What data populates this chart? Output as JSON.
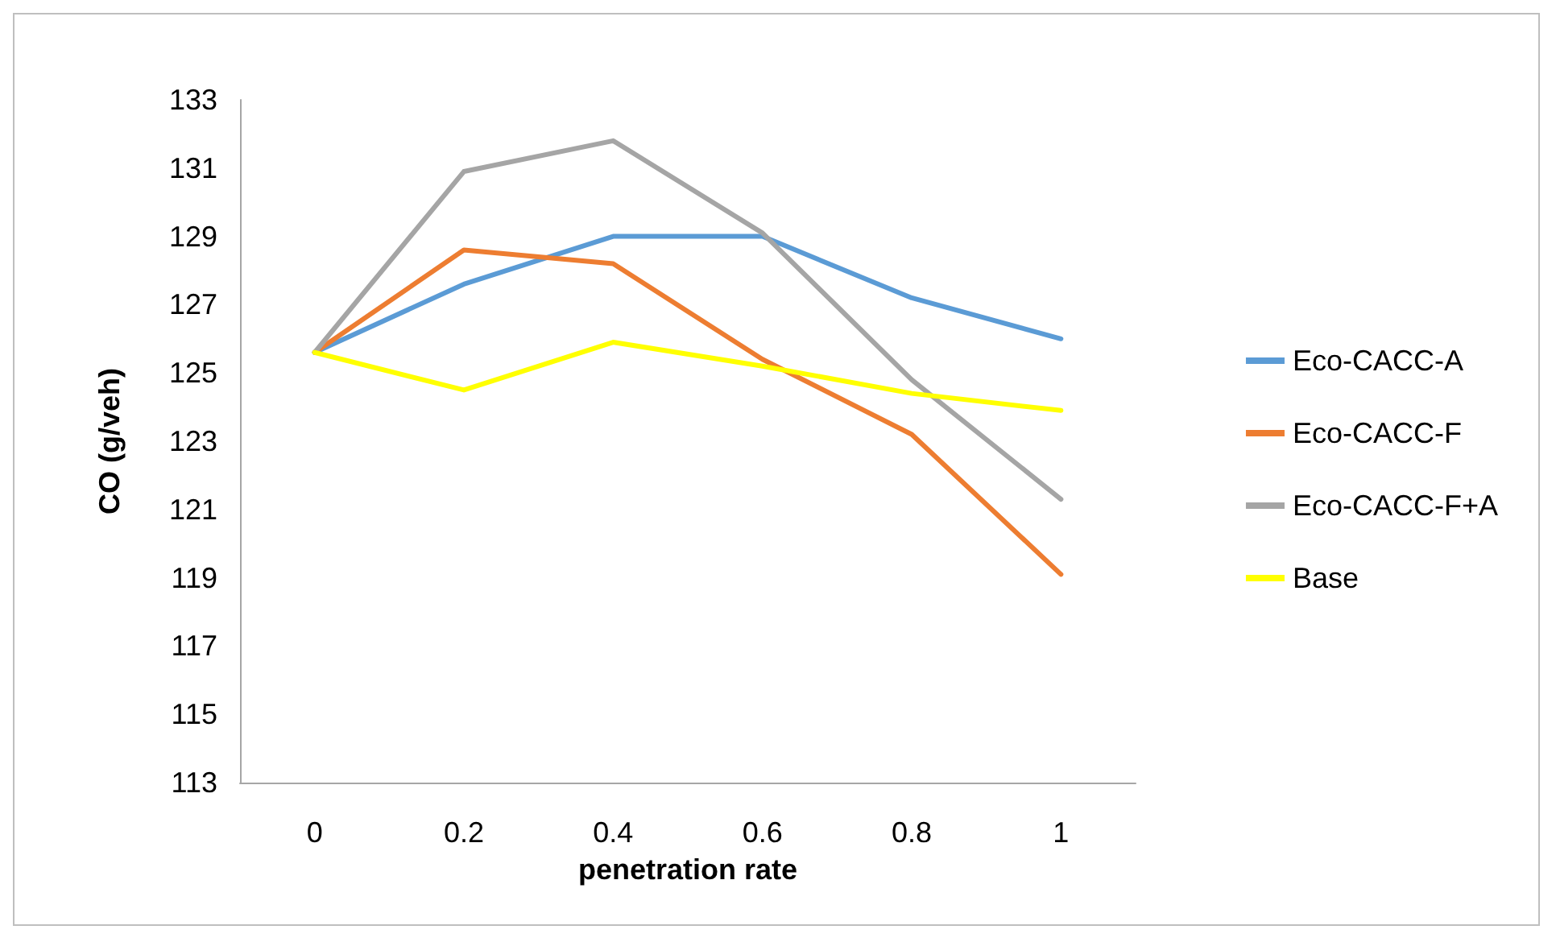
{
  "chart_data": {
    "type": "line",
    "xlabel": "penetration rate",
    "ylabel": "CO (g/veh)",
    "categories": [
      "0",
      "0.2",
      "0.4",
      "0.6",
      "0.8",
      "1"
    ],
    "series": [
      {
        "name": "Eco-CACC-A",
        "color": "#5b9bd5",
        "values": [
          125.6,
          127.6,
          129.0,
          129.0,
          127.2,
          126.0
        ]
      },
      {
        "name": "Eco-CACC-F",
        "color": "#ed7d31",
        "values": [
          125.6,
          128.6,
          128.2,
          125.4,
          123.2,
          119.1
        ]
      },
      {
        "name": "Eco-CACC-F+A",
        "color": "#a5a5a5",
        "values": [
          125.6,
          130.9,
          131.8,
          129.1,
          124.8,
          121.3
        ]
      },
      {
        "name": "Base",
        "color": "#ffff00",
        "values": [
          125.6,
          124.5,
          125.9,
          125.2,
          124.4,
          123.9
        ]
      }
    ],
    "ylim": [
      113,
      133
    ],
    "yticks": [
      113,
      115,
      117,
      119,
      121,
      123,
      125,
      127,
      129,
      131,
      133
    ],
    "grid": false,
    "legend": "right",
    "marker": "none",
    "line_style": "solid"
  }
}
